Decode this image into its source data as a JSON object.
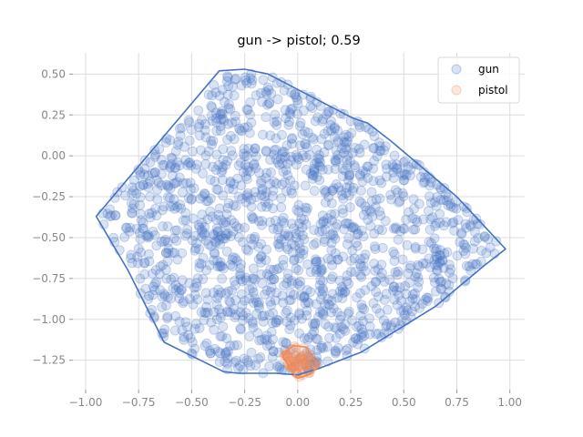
{
  "chart_data": {
    "type": "scatter",
    "title": "gun -> pistol; 0.59",
    "xlabel": "",
    "ylabel": "",
    "xlim": [
      -1.06,
      1.07
    ],
    "ylim": [
      -1.43,
      0.63
    ],
    "x_ticks": [
      -1.0,
      -0.75,
      -0.5,
      -0.25,
      0.0,
      0.25,
      0.5,
      0.75,
      1.0
    ],
    "x_tick_labels": [
      "−1.00",
      "−0.75",
      "−0.50",
      "−0.25",
      "0.00",
      "0.25",
      "0.50",
      "0.75",
      "1.00"
    ],
    "y_ticks": [
      0.5,
      0.25,
      0.0,
      -0.25,
      -0.5,
      -0.75,
      -1.0,
      -1.25
    ],
    "y_tick_labels": [
      "0.50",
      "0.25",
      "0.00",
      "−0.25",
      "−0.50",
      "−0.75",
      "−1.00",
      "−1.25"
    ],
    "grid": true,
    "legend_position": "top-right",
    "series": [
      {
        "name": "gun",
        "color": "#4472c4",
        "point_count": 1500,
        "random_seed": 7,
        "hull": [
          [
            -0.37,
            0.52
          ],
          [
            -0.25,
            0.53
          ],
          [
            -0.14,
            0.5
          ],
          [
            0.26,
            0.23
          ],
          [
            0.33,
            0.2
          ],
          [
            0.44,
            0.09
          ],
          [
            0.75,
            -0.25
          ],
          [
            0.98,
            -0.57
          ],
          [
            0.88,
            -0.67
          ],
          [
            0.65,
            -0.92
          ],
          [
            0.3,
            -1.2
          ],
          [
            0.1,
            -1.3
          ],
          [
            0.0,
            -1.34
          ],
          [
            -0.1,
            -1.33
          ],
          [
            -0.28,
            -1.33
          ],
          [
            -0.35,
            -1.32
          ],
          [
            -0.63,
            -1.14
          ],
          [
            -0.8,
            -0.7
          ],
          [
            -0.95,
            -0.37
          ]
        ]
      },
      {
        "name": "pistol",
        "color": "#ee8a5a",
        "point_count": 60,
        "random_seed": 11,
        "hull": [
          [
            -0.05,
            -1.19
          ],
          [
            -0.02,
            -1.16
          ],
          [
            0.04,
            -1.17
          ],
          [
            0.06,
            -1.21
          ],
          [
            0.1,
            -1.29
          ],
          [
            0.05,
            -1.34
          ],
          [
            0.0,
            -1.36
          ],
          [
            -0.02,
            -1.33
          ],
          [
            -0.07,
            -1.23
          ]
        ]
      }
    ]
  }
}
